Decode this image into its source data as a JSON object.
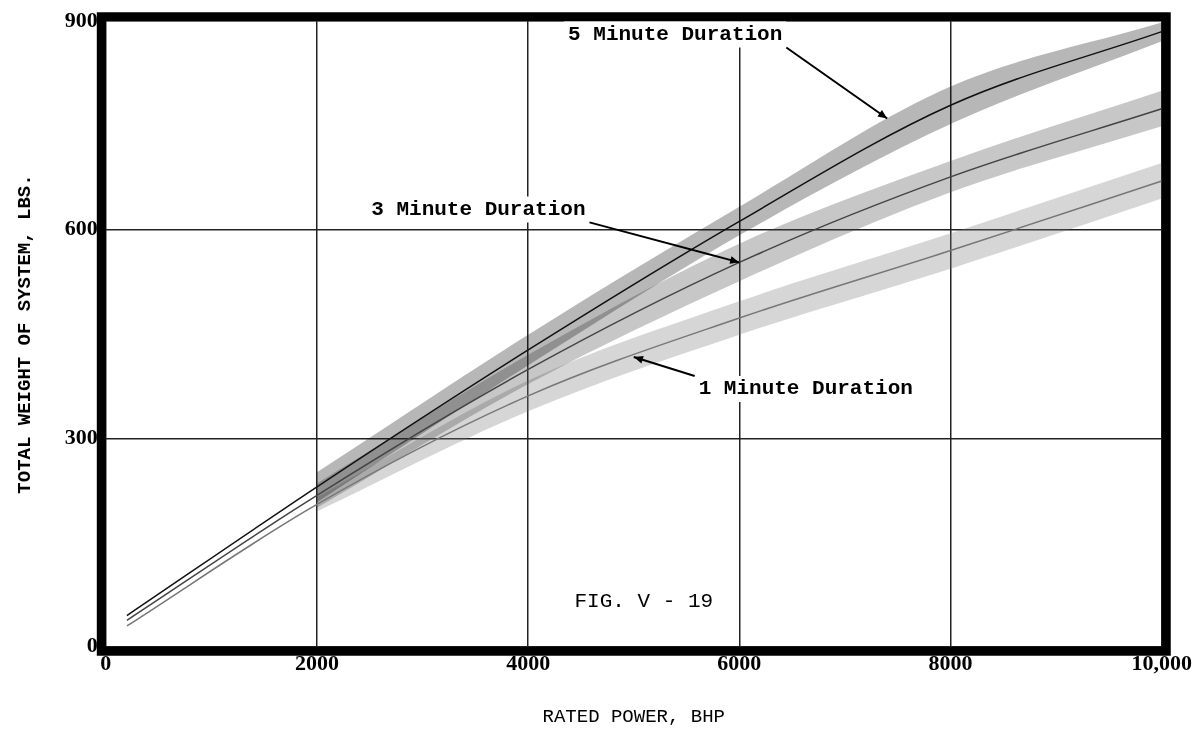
{
  "chart_data": {
    "type": "line",
    "xlabel": "RATED POWER, BHP",
    "ylabel": "TOTAL WEIGHT OF SYSTEM, LBS.",
    "xlim": [
      0,
      10000
    ],
    "xticks": [
      0,
      2000,
      4000,
      6000,
      8000,
      {
        "value": 10000,
        "label": "10,000"
      }
    ],
    "ylim": [
      0,
      900
    ],
    "yticks": [
      0,
      300,
      600,
      900
    ],
    "grid": true,
    "legend": false,
    "marker": "none",
    "line_style": "solid",
    "series": [
      {
        "color": "#111111",
        "x": [
          200,
          2000,
          4000,
          6000,
          8000,
          10000
        ],
        "values": [
          45,
          230,
          427,
          612,
          779,
          885
        ],
        "lower": [
          null,
          208,
          405,
          592,
          752,
          871
        ],
        "upper": [
          null,
          251,
          449,
          633,
          806,
          898
        ]
      },
      {
        "color": "#444444",
        "x": [
          200,
          2000,
          4000,
          6000,
          8000,
          10000
        ],
        "values": [
          38,
          218,
          399,
          553,
          676,
          774
        ],
        "lower": [
          null,
          200,
          378,
          526,
          654,
          749
        ],
        "upper": [
          null,
          235,
          420,
          580,
          699,
          800
        ]
      },
      {
        "color": "#777777",
        "x": [
          200,
          2000,
          4000,
          6000,
          8000,
          10000
        ],
        "values": [
          30,
          205,
          361,
          473,
          570,
          670
        ],
        "lower": [
          null,
          195,
          339,
          449,
          544,
          645
        ],
        "upper": [
          null,
          215,
          383,
          497,
          595,
          696
        ]
      }
    ],
    "annotations": [
      {
        "text": "5 Minute Duration",
        "x": 7400,
        "y": 760
      },
      {
        "text": "3 Minute Duration",
        "x": 6000,
        "y": 553
      },
      {
        "text": "1 Minute Duration",
        "x": 5000,
        "y": 417
      },
      "FIG. V - 19"
    ]
  }
}
